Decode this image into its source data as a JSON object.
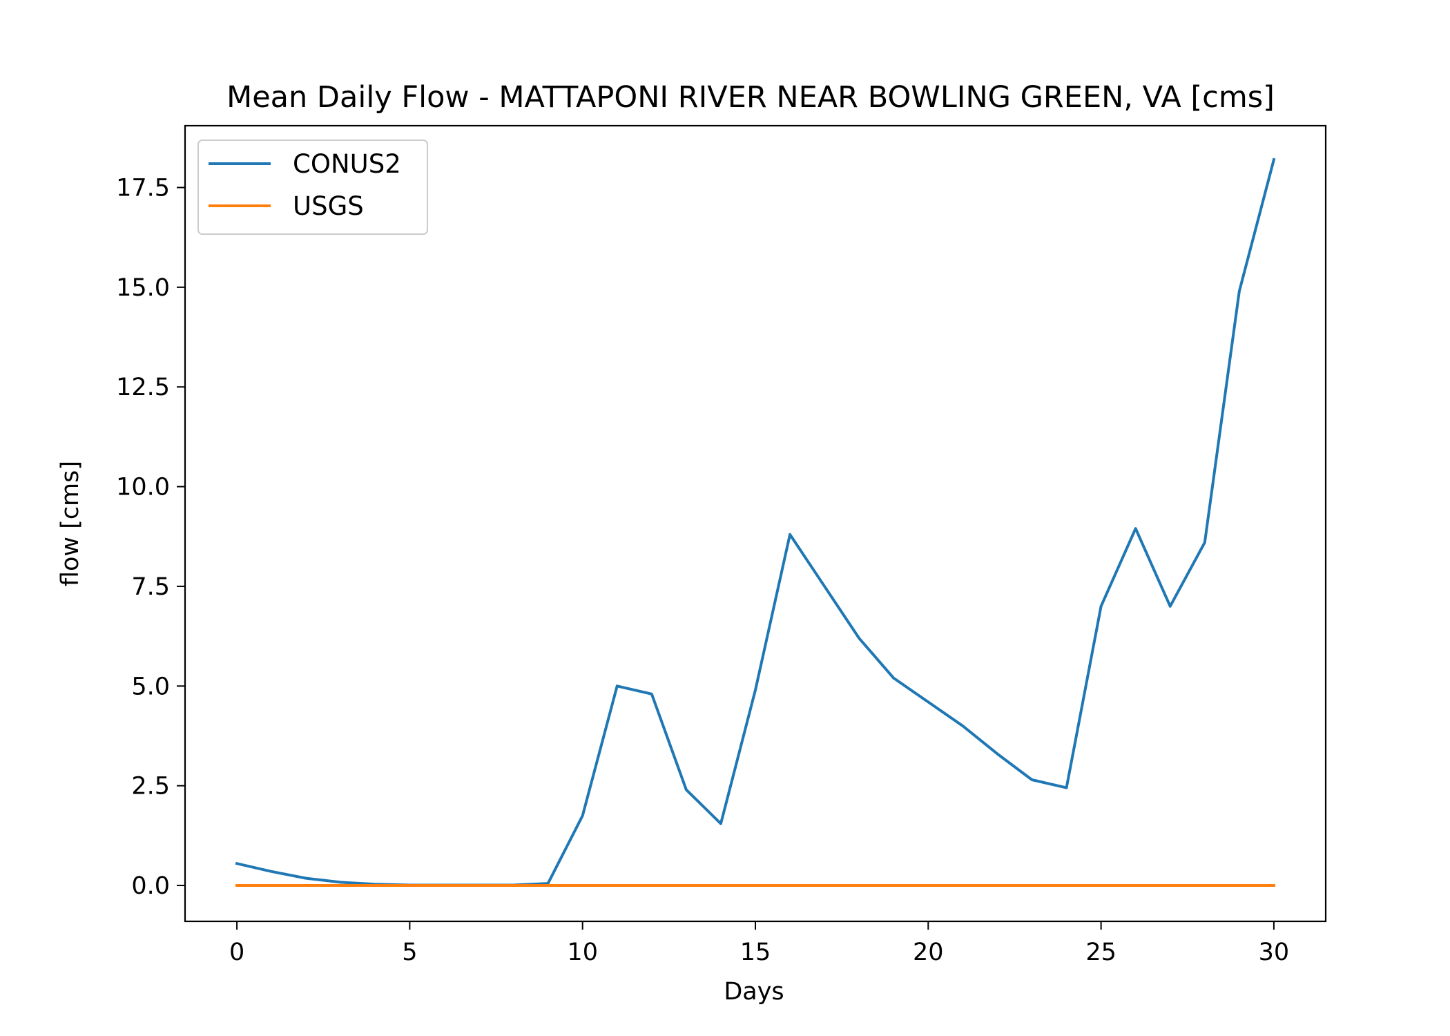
{
  "chart_data": {
    "type": "line",
    "title": "Mean Daily Flow - MATTAPONI RIVER NEAR BOWLING GREEN, VA [cms]",
    "xlabel": "Days",
    "ylabel": "flow [cms]",
    "xlim": [
      -1.5,
      31.5
    ],
    "ylim": [
      -0.9,
      19.05
    ],
    "xticks": [
      0,
      5,
      10,
      15,
      20,
      25,
      30
    ],
    "yticks": [
      0.0,
      2.5,
      5.0,
      7.5,
      10.0,
      12.5,
      15.0,
      17.5
    ],
    "xtick_labels": [
      "0",
      "5",
      "10",
      "15",
      "20",
      "25",
      "30"
    ],
    "ytick_labels": [
      "0.0",
      "2.5",
      "5.0",
      "7.5",
      "10.0",
      "12.5",
      "15.0",
      "17.5"
    ],
    "grid": false,
    "legend_position": "top-left",
    "x": [
      0,
      1,
      2,
      3,
      4,
      5,
      6,
      7,
      8,
      9,
      10,
      11,
      12,
      13,
      14,
      15,
      16,
      17,
      18,
      19,
      20,
      21,
      22,
      23,
      24,
      25,
      26,
      27,
      28,
      29,
      30
    ],
    "series": [
      {
        "name": "CONUS2",
        "color": "#1f77b4",
        "values": [
          0.55,
          0.35,
          0.18,
          0.08,
          0.03,
          0.01,
          0.01,
          0.01,
          0.01,
          0.05,
          1.75,
          5.0,
          4.8,
          2.4,
          1.55,
          4.9,
          8.8,
          7.5,
          6.2,
          5.2,
          4.6,
          4.0,
          3.3,
          2.65,
          2.45,
          7.0,
          8.95,
          7.0,
          8.6,
          14.9,
          18.2
        ]
      },
      {
        "name": "USGS",
        "color": "#ff7f0e",
        "values": [
          0,
          0,
          0,
          0,
          0,
          0,
          0,
          0,
          0,
          0,
          0,
          0,
          0,
          0,
          0,
          0,
          0,
          0,
          0,
          0,
          0,
          0,
          0,
          0,
          0,
          0,
          0,
          0,
          0,
          0,
          0
        ]
      }
    ]
  }
}
